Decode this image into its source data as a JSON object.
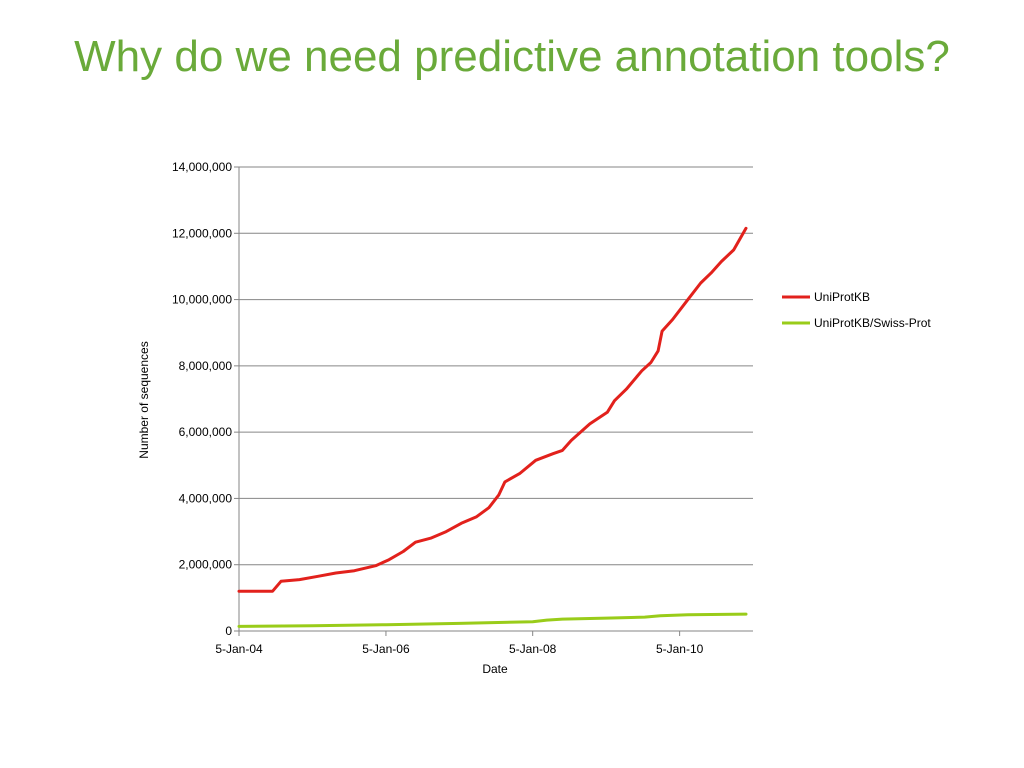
{
  "slide": {
    "title": "Why do we need predictive annotation tools?"
  },
  "colors": {
    "title": "#6aaa3a",
    "uniprotkb": "#e2211c",
    "swissprot": "#99cc1a",
    "gridline": "#868686"
  },
  "chart_data": {
    "type": "line",
    "xlabel": "Date",
    "ylabel": "Number of sequences",
    "x_axis": {
      "type": "date",
      "range": [
        "2004-01-05",
        "2011-01-05"
      ],
      "ticks": [
        {
          "date": "2004-01-05",
          "label": "5-Jan-04"
        },
        {
          "date": "2006-01-05",
          "label": "5-Jan-06"
        },
        {
          "date": "2008-01-05",
          "label": "5-Jan-08"
        },
        {
          "date": "2010-01-05",
          "label": "5-Jan-10"
        }
      ]
    },
    "y_axis": {
      "range": [
        0,
        14000000
      ],
      "ticks": [
        0,
        2000000,
        4000000,
        6000000,
        8000000,
        10000000,
        12000000,
        14000000
      ],
      "tick_labels": [
        "0",
        "2,000,000",
        "4,000,000",
        "6,000,000",
        "8,000,000",
        "10,000,000",
        "12,000,000",
        "14,000,000"
      ]
    },
    "grid": true,
    "legend_position": "right",
    "series": [
      {
        "name": "UniProtKB",
        "color": "#e2211c",
        "points": [
          [
            "2004-01-05",
            1200000
          ],
          [
            "2004-06-20",
            1200000
          ],
          [
            "2004-08-01",
            1500000
          ],
          [
            "2004-11-01",
            1550000
          ],
          [
            "2005-02-01",
            1650000
          ],
          [
            "2005-05-01",
            1750000
          ],
          [
            "2005-08-01",
            1820000
          ],
          [
            "2005-11-15",
            1970000
          ],
          [
            "2006-01-20",
            2150000
          ],
          [
            "2006-04-01",
            2400000
          ],
          [
            "2006-06-01",
            2680000
          ],
          [
            "2006-08-15",
            2800000
          ],
          [
            "2006-11-01",
            3000000
          ],
          [
            "2007-01-15",
            3250000
          ],
          [
            "2007-04-01",
            3450000
          ],
          [
            "2007-06-01",
            3720000
          ],
          [
            "2007-07-20",
            4100000
          ],
          [
            "2007-08-20",
            4500000
          ],
          [
            "2007-11-01",
            4750000
          ],
          [
            "2008-01-20",
            5150000
          ],
          [
            "2008-04-15",
            5350000
          ],
          [
            "2008-06-01",
            5450000
          ],
          [
            "2008-07-15",
            5750000
          ],
          [
            "2008-10-15",
            6250000
          ],
          [
            "2009-01-10",
            6600000
          ],
          [
            "2009-02-15",
            6950000
          ],
          [
            "2009-04-15",
            7300000
          ],
          [
            "2009-07-01",
            7850000
          ],
          [
            "2009-08-15",
            8100000
          ],
          [
            "2009-09-20",
            8450000
          ],
          [
            "2009-10-10",
            9050000
          ],
          [
            "2009-12-01",
            9400000
          ],
          [
            "2010-02-15",
            10000000
          ],
          [
            "2010-04-20",
            10500000
          ],
          [
            "2010-06-10",
            10800000
          ],
          [
            "2010-08-01",
            11150000
          ],
          [
            "2010-10-01",
            11500000
          ],
          [
            "2010-12-01",
            12150000
          ]
        ]
      },
      {
        "name": "UniProtKB/Swiss-Prot",
        "color": "#99cc1a",
        "points": [
          [
            "2004-01-05",
            140000
          ],
          [
            "2005-01-05",
            160000
          ],
          [
            "2006-01-05",
            190000
          ],
          [
            "2007-01-05",
            230000
          ],
          [
            "2008-01-05",
            280000
          ],
          [
            "2008-03-15",
            330000
          ],
          [
            "2008-06-01",
            360000
          ],
          [
            "2009-01-05",
            390000
          ],
          [
            "2009-07-15",
            420000
          ],
          [
            "2009-10-01",
            460000
          ],
          [
            "2010-02-15",
            490000
          ],
          [
            "2010-12-01",
            510000
          ]
        ]
      }
    ]
  }
}
